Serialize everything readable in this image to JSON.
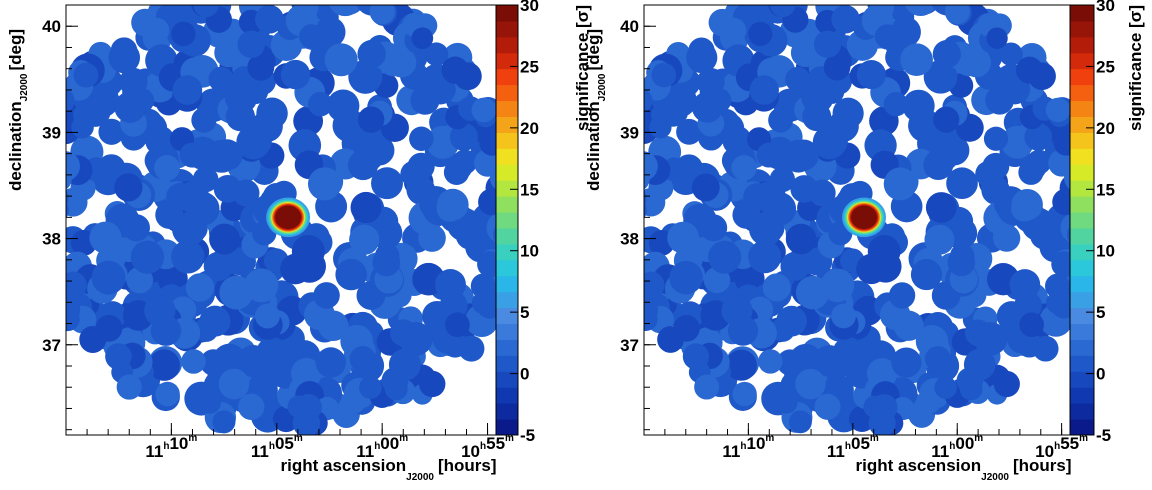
{
  "chart_data": [
    {
      "type": "heatmap",
      "xlabel": "right ascension",
      "xlabel_sub": "J2000",
      "xlabel_unit": "[hours]",
      "ylabel": "declination",
      "ylabel_sub": "J2000",
      "ylabel_unit": "[deg]",
      "x_ticks": [
        {
          "h": "11",
          "m": "10",
          "value": 11.1667
        },
        {
          "h": "11",
          "m": "05",
          "value": 11.0833
        },
        {
          "h": "11",
          "m": "00",
          "value": 11.0
        },
        {
          "h": "10",
          "m": "55",
          "value": 10.9167
        }
      ],
      "y_ticks": [
        {
          "label": "37",
          "value": 37
        },
        {
          "label": "38",
          "value": 38
        },
        {
          "label": "39",
          "value": 39
        },
        {
          "label": "40",
          "value": 40
        }
      ],
      "xlim": [
        11.25,
        10.91
      ],
      "ylim": [
        36.15,
        40.2
      ],
      "colorbar": {
        "label": "significance",
        "label_unit": "[σ]",
        "min": -5,
        "max": 30,
        "ticks": [
          "-5",
          "0",
          "5",
          "10",
          "15",
          "20",
          "25",
          "30"
        ],
        "colors": [
          "#0b1a8a",
          "#0d2a9e",
          "#1038b0",
          "#1848be",
          "#1f58c8",
          "#2a68d2",
          "#3a7ada",
          "#4a8ae0",
          "#3aa0e6",
          "#2ab6e8",
          "#2ac8da",
          "#3ad0c0",
          "#52d4a0",
          "#70da80",
          "#90e060",
          "#b4e640",
          "#d6ea28",
          "#f0e020",
          "#f4c41c",
          "#f4a418",
          "#f48414",
          "#f46010",
          "#f0400e",
          "#d42a0c",
          "#b41c0a",
          "#961408",
          "#7a0e06"
        ]
      },
      "source": {
        "ra": 11.0744,
        "dec": 38.2,
        "peak": 30
      },
      "background_significance": 1
    },
    {
      "type": "heatmap",
      "xlabel": "right ascension",
      "xlabel_sub": "J2000",
      "xlabel_unit": "[hours]",
      "ylabel": "declination",
      "ylabel_sub": "J2000",
      "ylabel_unit": "[deg]",
      "x_ticks": [
        {
          "h": "11",
          "m": "10",
          "value": 11.1667
        },
        {
          "h": "11",
          "m": "05",
          "value": 11.0833
        },
        {
          "h": "11",
          "m": "00",
          "value": 11.0
        },
        {
          "h": "10",
          "m": "55",
          "value": 10.9167
        }
      ],
      "y_ticks": [
        {
          "label": "37",
          "value": 37
        },
        {
          "label": "38",
          "value": 38
        },
        {
          "label": "39",
          "value": 39
        },
        {
          "label": "40",
          "value": 40
        }
      ],
      "xlim": [
        11.25,
        10.91
      ],
      "ylim": [
        36.15,
        40.2
      ],
      "colorbar": {
        "label": "significance",
        "label_unit": "[σ]",
        "min": -5,
        "max": 30,
        "ticks": [
          "-5",
          "0",
          "5",
          "10",
          "15",
          "20",
          "25",
          "30"
        ],
        "colors": [
          "#0b1a8a",
          "#0d2a9e",
          "#1038b0",
          "#1848be",
          "#1f58c8",
          "#2a68d2",
          "#3a7ada",
          "#4a8ae0",
          "#3aa0e6",
          "#2ab6e8",
          "#2ac8da",
          "#3ad0c0",
          "#52d4a0",
          "#70da80",
          "#90e060",
          "#b4e640",
          "#d6ea28",
          "#f0e020",
          "#f4c41c",
          "#f4a418",
          "#f48414",
          "#f46010",
          "#f0400e",
          "#d42a0c",
          "#b41c0a",
          "#961408",
          "#7a0e06"
        ]
      },
      "source": {
        "ra": 11.0744,
        "dec": 38.2,
        "peak": 30
      },
      "background_significance": 1
    }
  ]
}
